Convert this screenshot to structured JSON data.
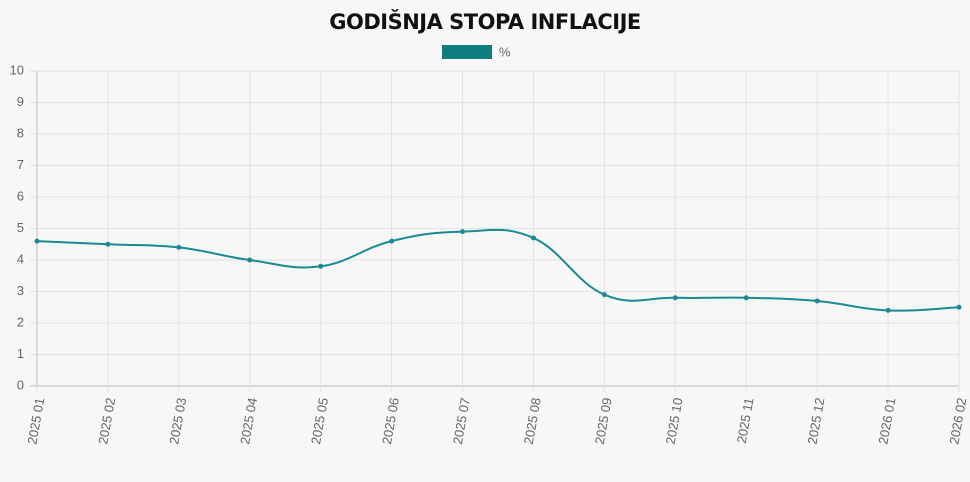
{
  "chart_data": {
    "type": "line",
    "title": "GODIŠNJA STOPA INFLACIJE",
    "categories": [
      "2025 01",
      "2025 02",
      "2025 03",
      "2025 04",
      "2025 05",
      "2025 06",
      "2025 07",
      "2025 08",
      "2025 09",
      "2025 10",
      "2025 11",
      "2025 12",
      "2026 01",
      "2026 02"
    ],
    "series": [
      {
        "name": "%",
        "color": "#1b8a94",
        "legend_color": "#0f7d7d",
        "values": [
          4.6,
          4.5,
          4.4,
          4.0,
          3.8,
          4.6,
          4.9,
          4.7,
          2.9,
          2.8,
          2.8,
          2.7,
          2.4,
          2.5
        ]
      }
    ],
    "ylim": [
      0,
      10
    ],
    "yticks": [
      0,
      1,
      2,
      3,
      4,
      5,
      6,
      7,
      8,
      9,
      10
    ],
    "grid": true
  }
}
